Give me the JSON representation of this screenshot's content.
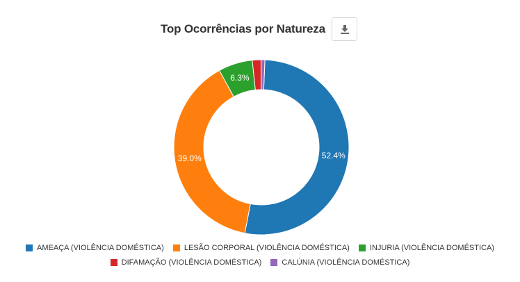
{
  "header": {
    "title": "Top Ocorrências por Natureza",
    "download_icon": "download-icon"
  },
  "chart_data": {
    "type": "pie",
    "donut": true,
    "title": "Top Ocorrências por Natureza",
    "legend_position": "bottom",
    "slices": [
      {
        "label": "AMEAÇA (VIOLÊNCIA DOMÉSTICA)",
        "value": 52.4,
        "display": "52.4%",
        "color": "#1f77b4"
      },
      {
        "label": "LESÃO CORPORAL (VIOLÊNCIA DOMÉSTICA)",
        "value": 39.0,
        "display": "39.0%",
        "color": "#ff7f0e"
      },
      {
        "label": "INJURIA (VIOLÊNCIA DOMÉSTICA)",
        "value": 6.3,
        "display": "6.3%",
        "color": "#2ca02c"
      },
      {
        "label": "DIFAMAÇÃO (VIOLÊNCIA DOMÉSTICA)",
        "value": 1.6,
        "display": "",
        "color": "#d62728"
      },
      {
        "label": "CALÚNIA (VIOLÊNCIA DOMÉSTICA)",
        "value": 0.7,
        "display": "",
        "color": "#9467bd"
      }
    ]
  }
}
